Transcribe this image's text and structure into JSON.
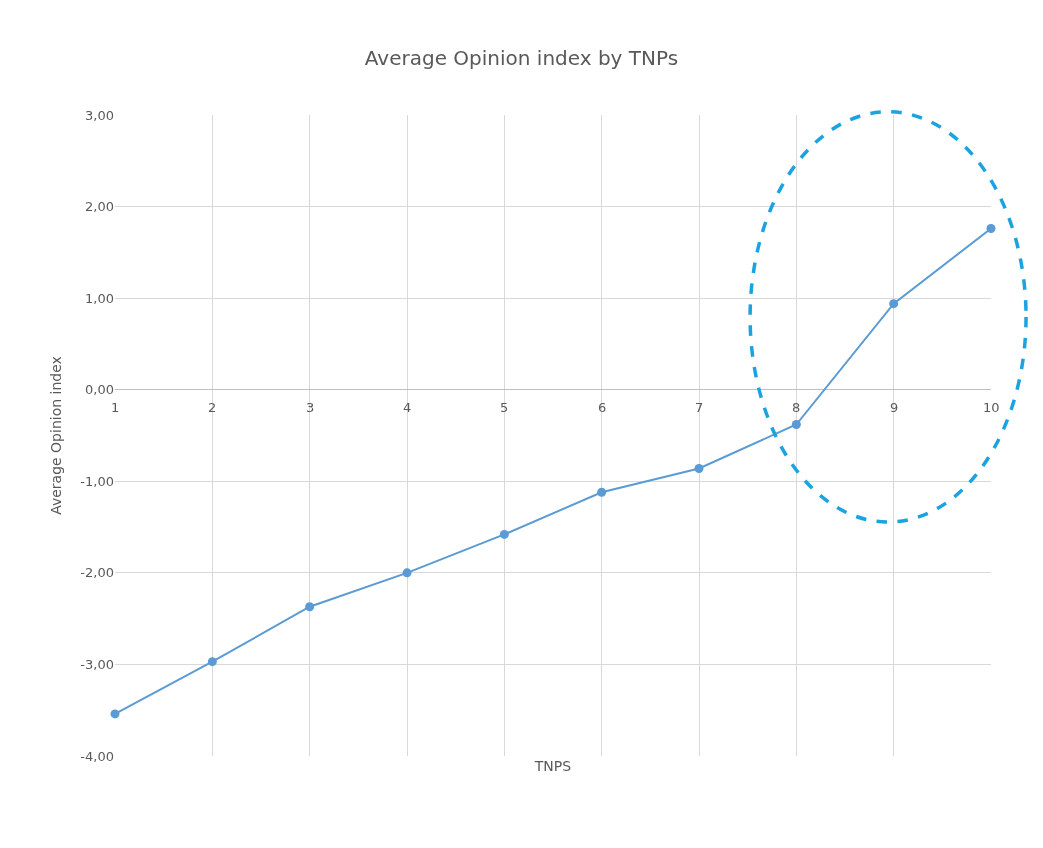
{
  "chart_data": {
    "type": "line",
    "title": "Average Opinion index by TNPs",
    "xlabel": "TNPS",
    "ylabel": "Average Opinion index",
    "categories": [
      "1",
      "2",
      "3",
      "4",
      "5",
      "6",
      "7",
      "8",
      "9",
      "10"
    ],
    "series": [
      {
        "color": "#5b9bd5",
        "values": [
          -3.54,
          -2.97,
          -2.37,
          -2.0,
          -1.58,
          -1.12,
          -0.86,
          -0.38,
          0.94,
          1.76
        ]
      }
    ],
    "ylim": [
      -4,
      3
    ],
    "yticks": [
      {
        "value": -4,
        "label": "-4,00"
      },
      {
        "value": -3,
        "label": "-3,00"
      },
      {
        "value": -2,
        "label": "-2,00"
      },
      {
        "value": -1,
        "label": "-1,00"
      },
      {
        "value": 0,
        "label": "0,00"
      },
      {
        "value": 1,
        "label": "1,00"
      },
      {
        "value": 2,
        "label": "2,00"
      },
      {
        "value": 3,
        "label": "3,00"
      }
    ],
    "grid": true,
    "marker": "circle",
    "line_style": "solid"
  }
}
